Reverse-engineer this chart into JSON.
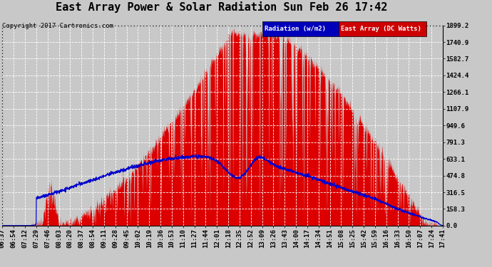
{
  "title": "East Array Power & Solar Radiation Sun Feb 26 17:42",
  "copyright": "Copyright 2017 Cartronics.com",
  "legend_radiation": "Radiation (w/m2)",
  "legend_east_array": "East Array (DC Watts)",
  "legend_radiation_bg": "#0000bb",
  "legend_east_array_bg": "#cc0000",
  "yticks": [
    0.0,
    158.3,
    316.5,
    474.8,
    633.1,
    791.3,
    949.6,
    1107.9,
    1266.1,
    1424.4,
    1582.7,
    1740.9,
    1899.2
  ],
  "ymax": 1899.2,
  "ymin": 0.0,
  "background_color": "#c8c8c8",
  "plot_bg_color": "#c8c8c8",
  "fill_color": "#dd0000",
  "line_color": "#0000cc",
  "grid_color": "#ffffff",
  "title_fontsize": 11,
  "copyright_fontsize": 6.5,
  "tick_fontsize": 6.5,
  "xtick_labels": [
    "06:37",
    "06:54",
    "07:12",
    "07:29",
    "07:46",
    "08:03",
    "08:20",
    "08:37",
    "08:54",
    "09:11",
    "09:28",
    "09:45",
    "10:02",
    "10:19",
    "10:36",
    "10:53",
    "11:10",
    "11:27",
    "11:44",
    "12:01",
    "12:18",
    "12:35",
    "12:52",
    "13:09",
    "13:26",
    "13:43",
    "14:00",
    "14:17",
    "14:34",
    "14:51",
    "15:08",
    "15:25",
    "15:42",
    "15:59",
    "16:16",
    "16:33",
    "16:50",
    "17:07",
    "17:24",
    "17:41"
  ]
}
